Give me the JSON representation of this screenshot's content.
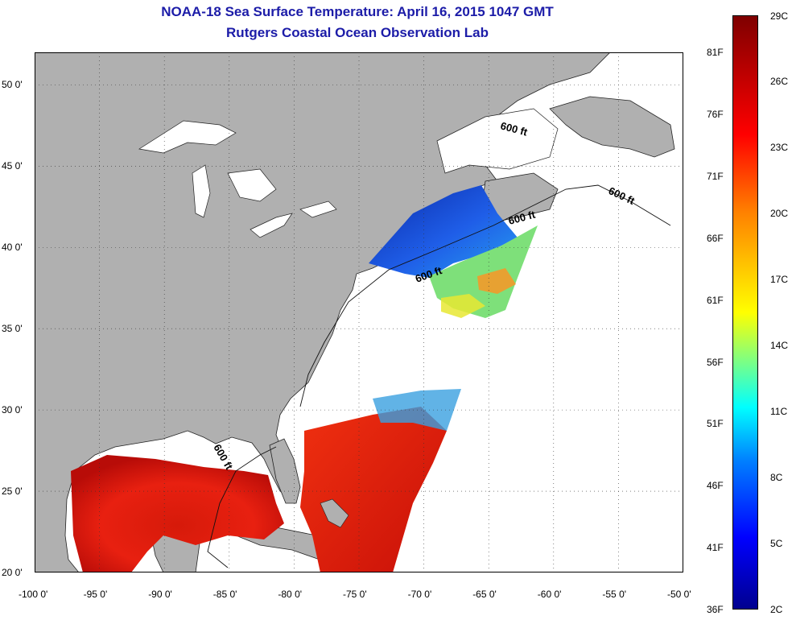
{
  "header": {
    "title": "NOAA-18 Sea Surface Temperature:  April 16, 2015 1047 GMT",
    "subtitle": "Rutgers Coastal Ocean Observation Lab"
  },
  "map": {
    "x_ticks": [
      "-100 0'",
      "-95 0'",
      "-90 0'",
      "-85 0'",
      "-80 0'",
      "-75 0'",
      "-70 0'",
      "-65 0'",
      "-60 0'",
      "-55 0'",
      "-50 0'"
    ],
    "y_ticks": [
      "50 0'",
      "45 0'",
      "40 0'",
      "35 0'",
      "30 0'",
      "25 0'",
      "20 0'"
    ],
    "lon_range": [
      -100,
      -50
    ],
    "lat_range": [
      20,
      52
    ],
    "grid": true,
    "contour_label": "600 ft",
    "colors": {
      "land": "#b0b0b0",
      "water_nodata": "#ffffff",
      "title": "#1c1ca8"
    }
  },
  "colorbar": {
    "left_labels": [
      "81F",
      "76F",
      "71F",
      "66F",
      "61F",
      "56F",
      "51F",
      "46F",
      "41F",
      "36F"
    ],
    "right_labels": [
      "29C",
      "26C",
      "23C",
      "20C",
      "17C",
      "14C",
      "11C",
      "8C",
      "5C",
      "2C"
    ],
    "range_c": [
      2,
      29
    ],
    "range_f": [
      36,
      84
    ]
  }
}
